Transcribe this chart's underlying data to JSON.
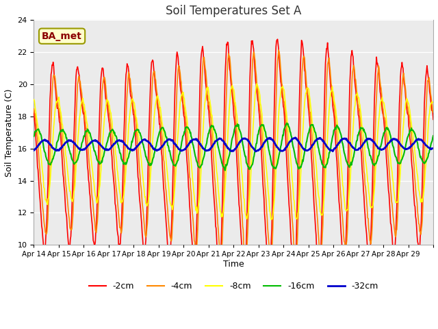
{
  "title": "Soil Temperatures Set A",
  "xlabel": "Time",
  "ylabel": "Soil Temperature (C)",
  "ylim": [
    10,
    24
  ],
  "yticks": [
    10,
    12,
    14,
    16,
    18,
    20,
    22,
    24
  ],
  "fig_bg_color": "#ffffff",
  "plot_bg_color": "#ebebeb",
  "annotation_text": "BA_met",
  "annotation_color": "#8B0000",
  "annotation_bg": "#ffffcc",
  "annotation_edge": "#999900",
  "legend_entries": [
    "-2cm",
    "-4cm",
    "-8cm",
    "-16cm",
    "-32cm"
  ],
  "line_colors": [
    "#ff0000",
    "#ff8800",
    "#ffff00",
    "#00bb00",
    "#0000cc"
  ],
  "line_widths": [
    1.2,
    1.2,
    1.2,
    1.5,
    2.0
  ],
  "xtick_labels": [
    "Apr 14",
    "Apr 15",
    "Apr 16",
    "Apr 17",
    "Apr 18",
    "Apr 19",
    "Apr 20",
    "Apr 21",
    "Apr 22",
    "Apr 23",
    "Apr 24",
    "Apr 25",
    "Apr 26",
    "Apr 27",
    "Apr 28",
    "Apr 29"
  ],
  "pts_per_day": 48,
  "n_days": 16,
  "seed": 7
}
